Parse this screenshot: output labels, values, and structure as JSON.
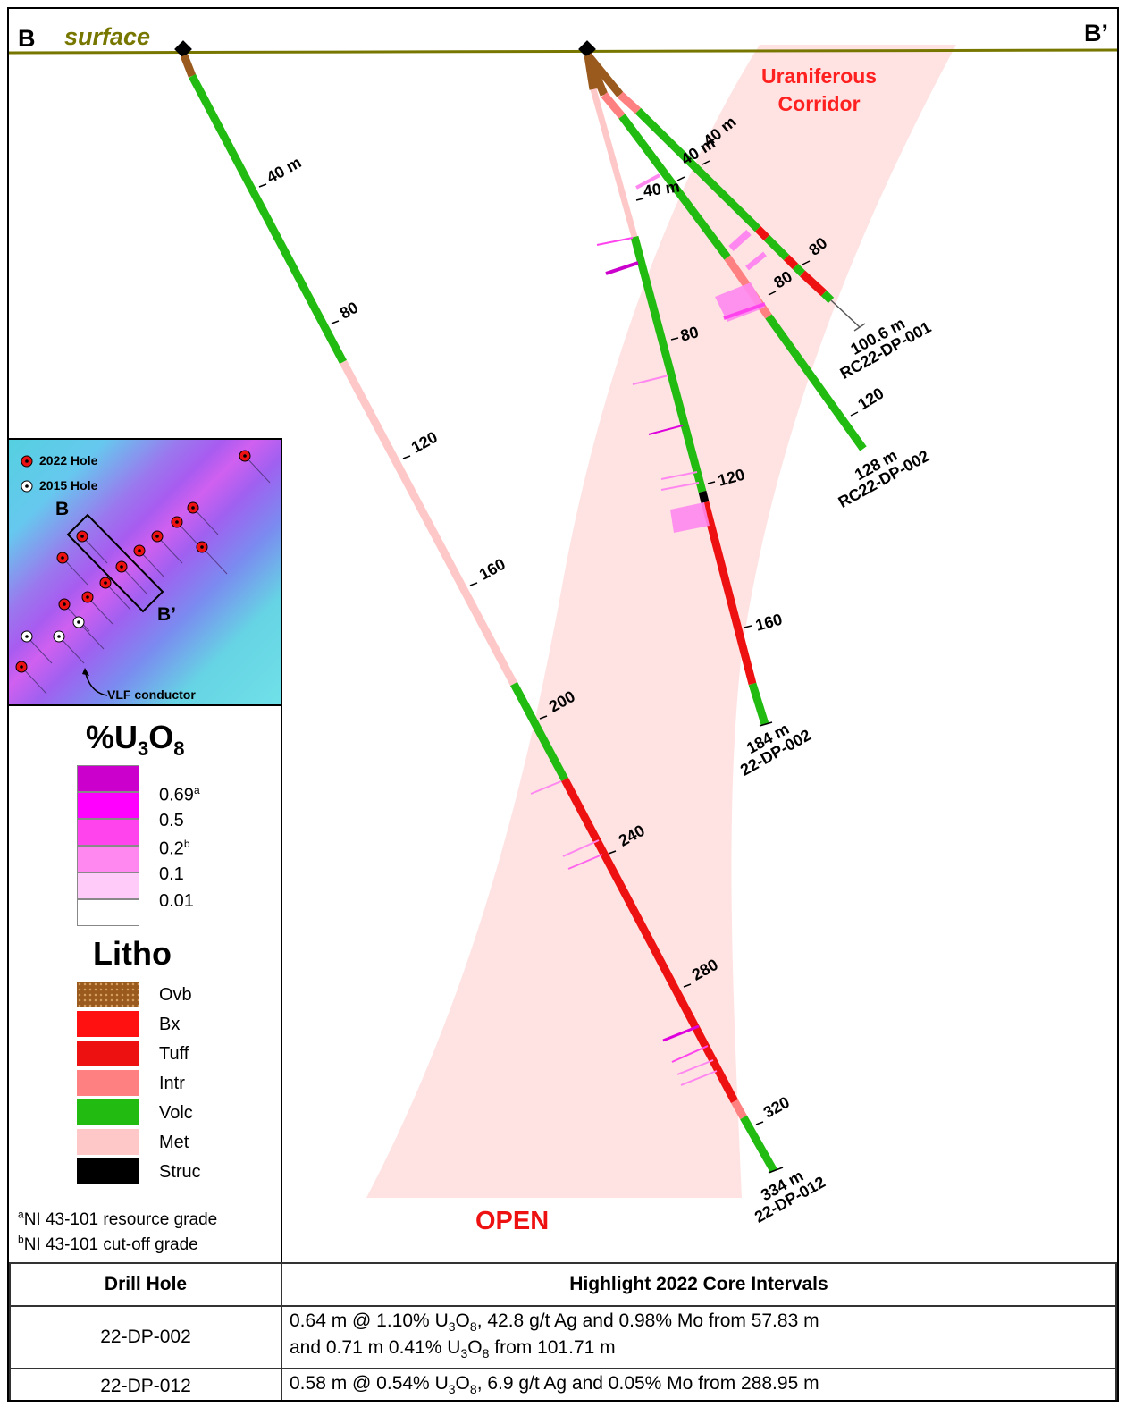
{
  "section": {
    "label_left": "B",
    "surface_label": "surface",
    "label_right": "B’",
    "corridor_label_line1": "Uraniferous",
    "corridor_label_line2": "Corridor",
    "open_label": "OPEN"
  },
  "holes": [
    {
      "id": "22-DP-012",
      "end_label": "334 m",
      "name_label": "22-DP-012",
      "depth_ticks": [
        "40 m",
        "80",
        "120",
        "160",
        "200",
        "240",
        "280",
        "320"
      ]
    },
    {
      "id": "22-DP-002",
      "end_label": "184 m",
      "name_label": "22-DP-002",
      "depth_ticks": [
        "40 m",
        "80",
        "120",
        "160"
      ]
    },
    {
      "id": "RC22-DP-002",
      "end_label": "128 m",
      "name_label": "RC22-DP-002",
      "depth_ticks": [
        "40 m",
        "80",
        "120"
      ]
    },
    {
      "id": "RC22-DP-001",
      "end_label": "100.6 m",
      "name_label": "RC22-DP-001",
      "depth_ticks": [
        "40 m",
        "80"
      ]
    }
  ],
  "inset": {
    "legend_2022": "2022 Hole",
    "legend_2015": "2015 Hole",
    "label_b": "B",
    "label_b_prime": "B’",
    "conductor_label": "VLF conductor"
  },
  "legend": {
    "grade_title": "%U3O8",
    "grade_items": [
      {
        "label": "0.69",
        "sup": "a",
        "color": "#cc00cc"
      },
      {
        "label": "0.5",
        "sup": "",
        "color": "#ff00ff"
      },
      {
        "label": "0.2",
        "sup": "b",
        "color": "#ff44ee"
      },
      {
        "label": "0.1",
        "sup": "",
        "color": "#ff88f0"
      },
      {
        "label": "0.01",
        "sup": "",
        "color": "#ffccfa"
      },
      {
        "label": "",
        "sup": "",
        "color": "#ffffff"
      }
    ],
    "litho_title": "Litho",
    "litho_items": [
      {
        "label": "Ovb",
        "color": "#9a5a1e"
      },
      {
        "label": "Bx",
        "color": "#ff1111"
      },
      {
        "label": "Tuff",
        "color": "#ee1111"
      },
      {
        "label": "Intr",
        "color": "#ff8080"
      },
      {
        "label": "Volc",
        "color": "#22bb11"
      },
      {
        "label": "Met",
        "color": "#ffc8c8"
      },
      {
        "label": "Struc",
        "color": "#000000"
      }
    ],
    "footnote_a": "aNI 43-101 resource grade",
    "footnote_b": "bNI 43-101 cut-off grade"
  },
  "table": {
    "header_hole": "Drill Hole",
    "header_intervals": "Highlight 2022 Core Intervals",
    "rows": [
      {
        "hole": "22-DP-002",
        "interval_line1": "0.64 m @ 1.10% U3O8, 42.8 g/t Ag and 0.98% Mo from 57.83 m",
        "interval_line2": "and 0.71 m 0.41% U3O8 from 101.71 m"
      },
      {
        "hole": "22-DP-012",
        "interval_line1": "0.58 m @ 0.54% U3O8, 6.9 g/t Ag and 0.05% Mo from 288.95 m",
        "interval_line2": ""
      }
    ]
  },
  "colors": {
    "surface": "#777700",
    "corridor": "#ffd6d6",
    "volc": "#22bb11",
    "met": "#ffc8c8",
    "tuff": "#ee1111",
    "intr": "#ff8080",
    "ovb": "#9a5a1e",
    "struc": "#000000",
    "assay": "#ff33ee"
  }
}
